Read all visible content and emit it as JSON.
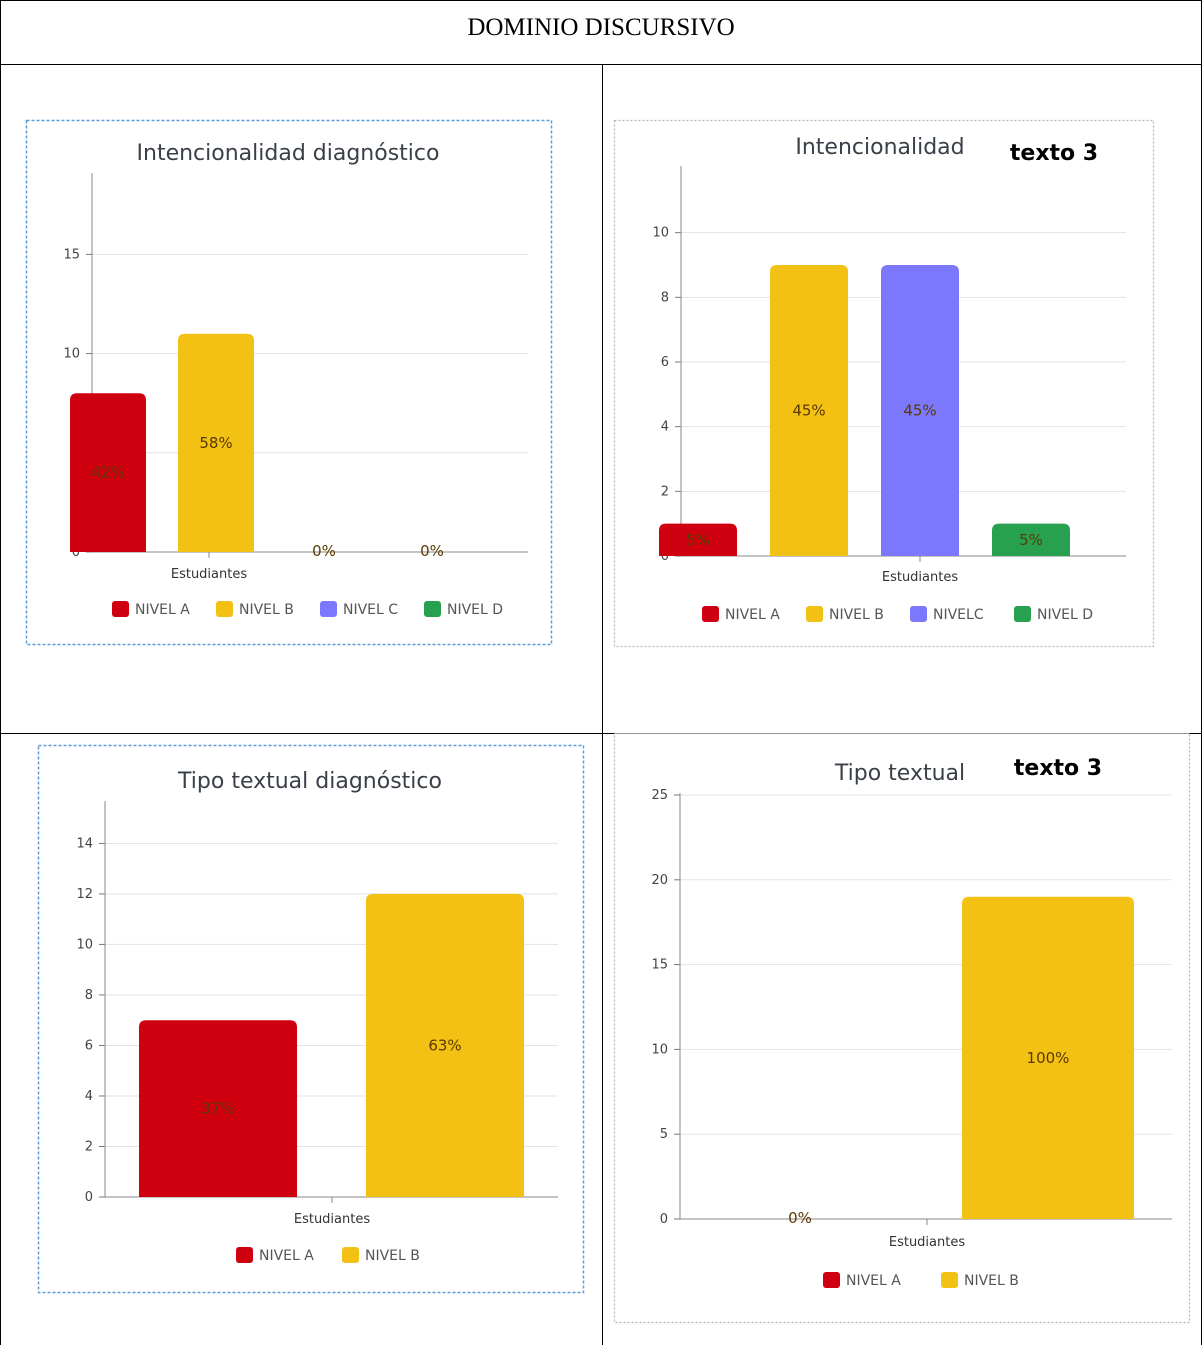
{
  "table": {
    "title": "DOMINIO DISCURSIVO"
  },
  "colors": {
    "nivel_a": "#cf000f",
    "nivel_b": "#f2c114",
    "nivel_c": "#7b78fe",
    "nivel_d": "#27a050"
  },
  "chart_data": [
    {
      "type": "bar",
      "title": "Intencionalidad diagnóstico",
      "annotation": "",
      "xlabel": "Estudiantes",
      "ylabel": "",
      "ylim": [
        0,
        19
      ],
      "yticks": [
        0,
        5,
        10,
        15
      ],
      "grid": true,
      "legend": "bottom",
      "series": [
        {
          "name": "NIVEL A",
          "value": 8,
          "label": "42%",
          "color": "#cf000f"
        },
        {
          "name": "NIVEL B",
          "value": 11,
          "label": "58%",
          "color": "#f2c114"
        },
        {
          "name": "NIVEL C",
          "value": 0,
          "label": "0%",
          "color": "#7b78fe"
        },
        {
          "name": "NIVEL D",
          "value": 0,
          "label": "0%",
          "color": "#27a050"
        }
      ]
    },
    {
      "type": "bar",
      "title": "Intencionalidad",
      "annotation": "texto 3",
      "xlabel": "Estudiantes",
      "ylabel": "",
      "ylim": [
        0,
        12
      ],
      "yticks": [
        0,
        2,
        4,
        6,
        8,
        10
      ],
      "grid": true,
      "legend": "bottom",
      "series": [
        {
          "name": "NIVEL A",
          "value": 1,
          "label": "5%",
          "color": "#cf000f"
        },
        {
          "name": "NIVEL B",
          "value": 9,
          "label": "45%",
          "color": "#f2c114"
        },
        {
          "name": "NIVELC",
          "value": 9,
          "label": "45%",
          "color": "#7b78fe"
        },
        {
          "name": "NIVEL D",
          "value": 1,
          "label": "5%",
          "color": "#27a050"
        }
      ]
    },
    {
      "type": "bar",
      "title": "Tipo textual diagnóstico",
      "annotation": "",
      "xlabel": "Estudiantes",
      "ylabel": "",
      "ylim": [
        0,
        15.6
      ],
      "yticks": [
        0,
        2,
        4,
        6,
        8,
        10,
        12,
        14
      ],
      "grid": true,
      "legend": "bottom",
      "series": [
        {
          "name": "NIVEL A",
          "value": 7,
          "label": "37%",
          "color": "#cf000f"
        },
        {
          "name": "NIVEL B",
          "value": 12,
          "label": "63%",
          "color": "#f2c114"
        }
      ]
    },
    {
      "type": "bar",
      "title": "Tipo textual",
      "annotation": "texto 3",
      "xlabel": "Estudiantes",
      "ylabel": "",
      "ylim": [
        0,
        25
      ],
      "yticks": [
        0,
        5,
        10,
        15,
        20,
        25
      ],
      "grid": true,
      "legend": "bottom",
      "series": [
        {
          "name": "NIVEL A",
          "value": 0,
          "label": "0%",
          "color": "#cf000f"
        },
        {
          "name": "NIVEL B",
          "value": 19,
          "label": "100%",
          "color": "#f2c114"
        }
      ]
    }
  ]
}
